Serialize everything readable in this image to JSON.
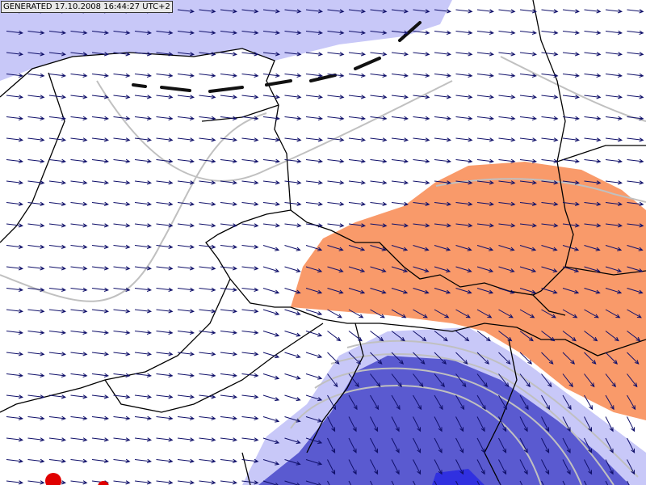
{
  "header": {
    "label": "GENERATED 17.10.2008 16:44:27 UTC+2"
  }
}
